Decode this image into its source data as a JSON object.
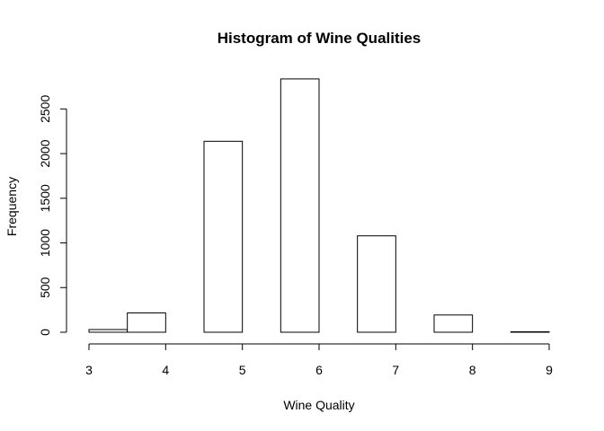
{
  "chart_data": {
    "type": "bar",
    "title": "Histogram of Wine Qualities",
    "xlabel": "Wine Quality",
    "ylabel": "Frequency",
    "xlim": [
      3,
      9
    ],
    "ylim": [
      0,
      2800
    ],
    "x_ticks": [
      3,
      4,
      5,
      6,
      7,
      8,
      9
    ],
    "y_ticks": [
      0,
      500,
      1000,
      1500,
      2000,
      2500
    ],
    "bins": [
      {
        "x0": 3.0,
        "x1": 3.5,
        "value": 30
      },
      {
        "x0": 3.5,
        "x1": 4.0,
        "value": 216
      },
      {
        "x0": 4.0,
        "x1": 4.5,
        "value": 0
      },
      {
        "x0": 4.5,
        "x1": 5.0,
        "value": 2138
      },
      {
        "x0": 5.0,
        "x1": 5.5,
        "value": 0
      },
      {
        "x0": 5.5,
        "x1": 6.0,
        "value": 2836
      },
      {
        "x0": 6.0,
        "x1": 6.5,
        "value": 0
      },
      {
        "x0": 6.5,
        "x1": 7.0,
        "value": 1079
      },
      {
        "x0": 7.0,
        "x1": 7.5,
        "value": 0
      },
      {
        "x0": 7.5,
        "x1": 8.0,
        "value": 193
      },
      {
        "x0": 8.0,
        "x1": 8.5,
        "value": 0
      },
      {
        "x0": 8.5,
        "x1": 9.0,
        "value": 5
      }
    ],
    "bar_fill": "#ffffff",
    "bar_stroke": "#000000",
    "grid": false,
    "legend": "none"
  }
}
